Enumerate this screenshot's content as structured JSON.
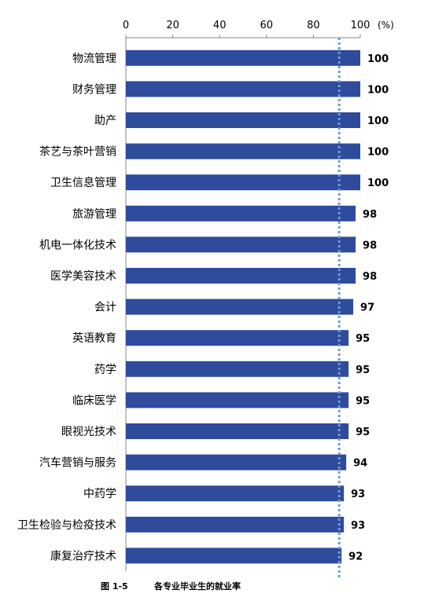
{
  "chart_data": {
    "type": "bar",
    "orientation": "horizontal",
    "categories": [
      "物流管理",
      "财务管理",
      "助产",
      "茶艺与茶叶营销",
      "卫生信息管理",
      "旅游管理",
      "机电一体化技术",
      "医学美容技术",
      "会计",
      "英语教育",
      "药学",
      "临床医学",
      "眼视光技术",
      "汽车营销与服务",
      "中药学",
      "卫生检验与检疫技术",
      "康复治疗技术"
    ],
    "values": [
      100,
      100,
      100,
      100,
      100,
      98,
      98,
      98,
      97,
      95,
      95,
      95,
      95,
      94,
      93,
      93,
      92
    ],
    "value_labels": [
      "100",
      "100",
      "100",
      "100",
      "100",
      "98",
      "98",
      "98",
      "97",
      "95",
      "95",
      "95",
      "95",
      "94",
      "93",
      "93",
      "92"
    ],
    "x_ticks": [
      "0",
      "20",
      "40",
      "60",
      "80",
      "100"
    ],
    "x_unit": "(%)",
    "xlim": [
      0,
      100
    ],
    "reference_line": 91,
    "bar_color": "#2E4B9C",
    "reference_color": "#6E9BD6",
    "xaxis_position": "top",
    "grid": false
  },
  "caption": {
    "figure": "图 1-5",
    "title": "各专业毕业生的就业率"
  }
}
